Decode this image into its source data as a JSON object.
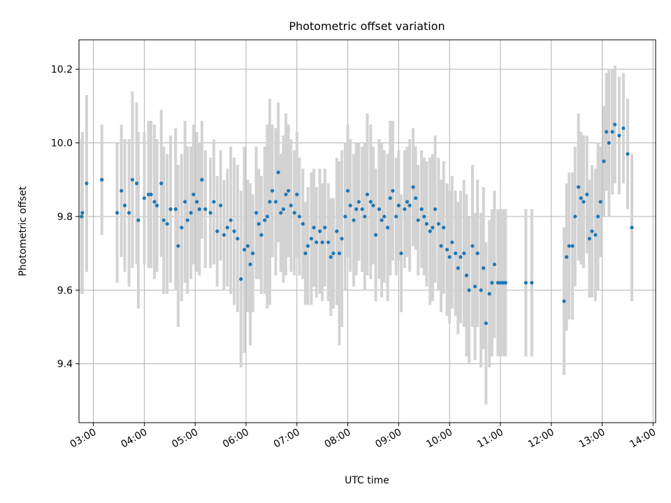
{
  "chart_data": {
    "type": "scatter",
    "title": "Photometric offset variation",
    "xlabel": "UTC time",
    "ylabel": "Photometric offset",
    "xlim": [
      "02:43",
      "14:03"
    ],
    "ylim": [
      9.24,
      10.28
    ],
    "grid": true,
    "x_ticks": [
      "03:00",
      "04:00",
      "05:00",
      "06:00",
      "07:00",
      "08:00",
      "09:00",
      "10:00",
      "11:00",
      "12:00",
      "13:00",
      "14:00"
    ],
    "y_ticks": [
      "9.4",
      "9.6",
      "9.8",
      "10.0",
      "10.2"
    ],
    "point_color": "#1f77b4",
    "errorbar_color": "#d3d3d3",
    "series": [
      {
        "x": [
          "02:46",
          "02:47",
          "02:52",
          "03:10",
          "03:28",
          "03:33",
          "03:37",
          "03:42",
          "03:46",
          "03:51",
          "03:53",
          "04:00",
          "04:05",
          "04:08",
          "04:12",
          "04:15",
          "04:20",
          "04:23",
          "04:27",
          "04:31",
          "04:37",
          "04:40",
          "04:44",
          "04:48",
          "04:51",
          "04:55",
          "04:58",
          "05:02",
          "05:05",
          "05:08",
          "05:12",
          "05:18",
          "05:22",
          "05:26",
          "05:30",
          "05:34",
          "05:38",
          "05:42",
          "05:46",
          "05:50",
          "05:54",
          "05:58",
          "06:02",
          "06:05",
          "06:08",
          "06:12",
          "06:15",
          "06:18",
          "06:22",
          "06:25",
          "06:28",
          "06:31",
          "06:35",
          "06:38",
          "06:41",
          "06:44",
          "06:47",
          "06:50",
          "06:53",
          "06:57",
          "07:00",
          "07:03",
          "07:07",
          "07:10",
          "07:13",
          "07:17",
          "07:20",
          "07:23",
          "07:27",
          "07:30",
          "07:33",
          "07:37",
          "07:40",
          "07:43",
          "07:47",
          "07:50",
          "07:53",
          "07:57",
          "08:00",
          "08:03",
          "08:07",
          "08:10",
          "08:13",
          "08:17",
          "08:20",
          "08:23",
          "08:27",
          "08:30",
          "08:33",
          "08:37",
          "08:40",
          "08:43",
          "08:47",
          "08:50",
          "08:53",
          "08:57",
          "09:00",
          "09:03",
          "09:07",
          "09:10",
          "09:13",
          "09:17",
          "09:20",
          "09:23",
          "09:27",
          "09:30",
          "09:33",
          "09:37",
          "09:40",
          "09:43",
          "09:47",
          "09:50",
          "09:53",
          "09:57",
          "10:00",
          "10:03",
          "10:07",
          "10:10",
          "10:13",
          "10:17",
          "10:20",
          "10:23",
          "10:27",
          "10:30",
          "10:33",
          "10:37",
          "10:40",
          "10:43",
          "10:47",
          "10:50",
          "10:53",
          "10:57",
          "11:00",
          "11:03",
          "11:06",
          "11:30",
          "11:37",
          "12:15",
          "12:18",
          "12:21",
          "12:25",
          "12:28",
          "12:32",
          "12:35",
          "12:38",
          "12:42",
          "12:45",
          "12:48",
          "12:52",
          "12:55",
          "12:58",
          "13:02",
          "13:05",
          "13:08",
          "13:12",
          "13:15",
          "13:20",
          "13:25",
          "13:30",
          "13:35"
        ],
        "y": [
          9.8,
          9.81,
          9.89,
          9.9,
          9.81,
          9.87,
          9.83,
          9.81,
          9.9,
          9.89,
          9.79,
          9.85,
          9.86,
          9.86,
          9.84,
          9.83,
          9.89,
          9.79,
          9.78,
          9.82,
          9.82,
          9.72,
          9.77,
          9.84,
          9.79,
          9.81,
          9.86,
          9.84,
          9.82,
          9.9,
          9.82,
          9.81,
          9.84,
          9.76,
          9.83,
          9.75,
          9.77,
          9.79,
          9.76,
          9.74,
          9.63,
          9.71,
          9.72,
          9.67,
          9.7,
          9.81,
          9.78,
          9.75,
          9.79,
          9.8,
          9.84,
          9.87,
          9.84,
          9.92,
          9.81,
          9.82,
          9.86,
          9.87,
          9.83,
          9.81,
          9.86,
          9.8,
          9.78,
          9.7,
          9.72,
          9.74,
          9.77,
          9.73,
          9.76,
          9.73,
          9.77,
          9.73,
          9.69,
          9.7,
          9.76,
          9.7,
          9.74,
          9.8,
          9.87,
          9.83,
          9.79,
          9.82,
          9.84,
          9.82,
          9.8,
          9.86,
          9.84,
          9.83,
          9.75,
          9.82,
          9.79,
          9.8,
          9.77,
          9.85,
          9.87,
          9.8,
          9.83,
          9.7,
          9.82,
          9.84,
          9.83,
          9.88,
          9.85,
          9.79,
          9.82,
          9.8,
          9.78,
          9.76,
          9.77,
          9.82,
          9.78,
          9.72,
          9.77,
          9.71,
          9.69,
          9.73,
          9.7,
          9.66,
          9.69,
          9.7,
          9.64,
          9.6,
          9.72,
          9.61,
          9.7,
          9.6,
          9.66,
          9.51,
          9.59,
          9.62,
          9.67,
          9.62,
          9.62,
          9.62,
          9.62,
          9.62,
          9.62,
          9.57,
          9.69,
          9.72,
          9.72,
          9.8,
          9.88,
          9.85,
          9.84,
          9.86,
          9.74,
          9.76,
          9.75,
          9.8,
          9.84,
          9.95,
          10.03,
          10.0,
          10.03,
          10.05,
          10.02,
          10.04,
          9.97,
          9.77
        ],
        "err": [
          0.21,
          0.22,
          0.24,
          0.15,
          0.19,
          0.18,
          0.18,
          0.2,
          0.24,
          0.22,
          0.24,
          0.18,
          0.2,
          0.2,
          0.21,
          0.18,
          0.2,
          0.2,
          0.19,
          0.2,
          0.22,
          0.22,
          0.2,
          0.22,
          0.2,
          0.18,
          0.19,
          0.19,
          0.18,
          0.16,
          0.16,
          0.15,
          0.17,
          0.15,
          0.15,
          0.15,
          0.16,
          0.2,
          0.2,
          0.2,
          0.24,
          0.28,
          0.18,
          0.22,
          0.16,
          0.18,
          0.15,
          0.16,
          0.2,
          0.25,
          0.28,
          0.18,
          0.2,
          0.19,
          0.16,
          0.2,
          0.22,
          0.18,
          0.18,
          0.17,
          0.17,
          0.16,
          0.15,
          0.14,
          0.16,
          0.18,
          0.16,
          0.15,
          0.17,
          0.16,
          0.16,
          0.16,
          0.16,
          0.15,
          0.2,
          0.25,
          0.24,
          0.2,
          0.18,
          0.18,
          0.18,
          0.18,
          0.16,
          0.17,
          0.2,
          0.22,
          0.21,
          0.16,
          0.18,
          0.19,
          0.21,
          0.18,
          0.2,
          0.21,
          0.19,
          0.16,
          0.15,
          0.16,
          0.16,
          0.15,
          0.18,
          0.16,
          0.14,
          0.15,
          0.16,
          0.16,
          0.17,
          0.2,
          0.2,
          0.2,
          0.18,
          0.18,
          0.18,
          0.18,
          0.18,
          0.18,
          0.17,
          0.18,
          0.18,
          0.2,
          0.22,
          0.2,
          0.22,
          0.2,
          0.2,
          0.21,
          0.22,
          0.22,
          0.2,
          0.2,
          0.2,
          0.2,
          0.2,
          0.2,
          0.2,
          0.2,
          0.2,
          0.2,
          0.2,
          0.2,
          0.2,
          0.19,
          0.2,
          0.18,
          0.18,
          0.16,
          0.16,
          0.18,
          0.18,
          0.2,
          0.15,
          0.15,
          0.16,
          0.2,
          0.17,
          0.16,
          0.16,
          0.15,
          0.15,
          0.2
        ]
      }
    ]
  }
}
